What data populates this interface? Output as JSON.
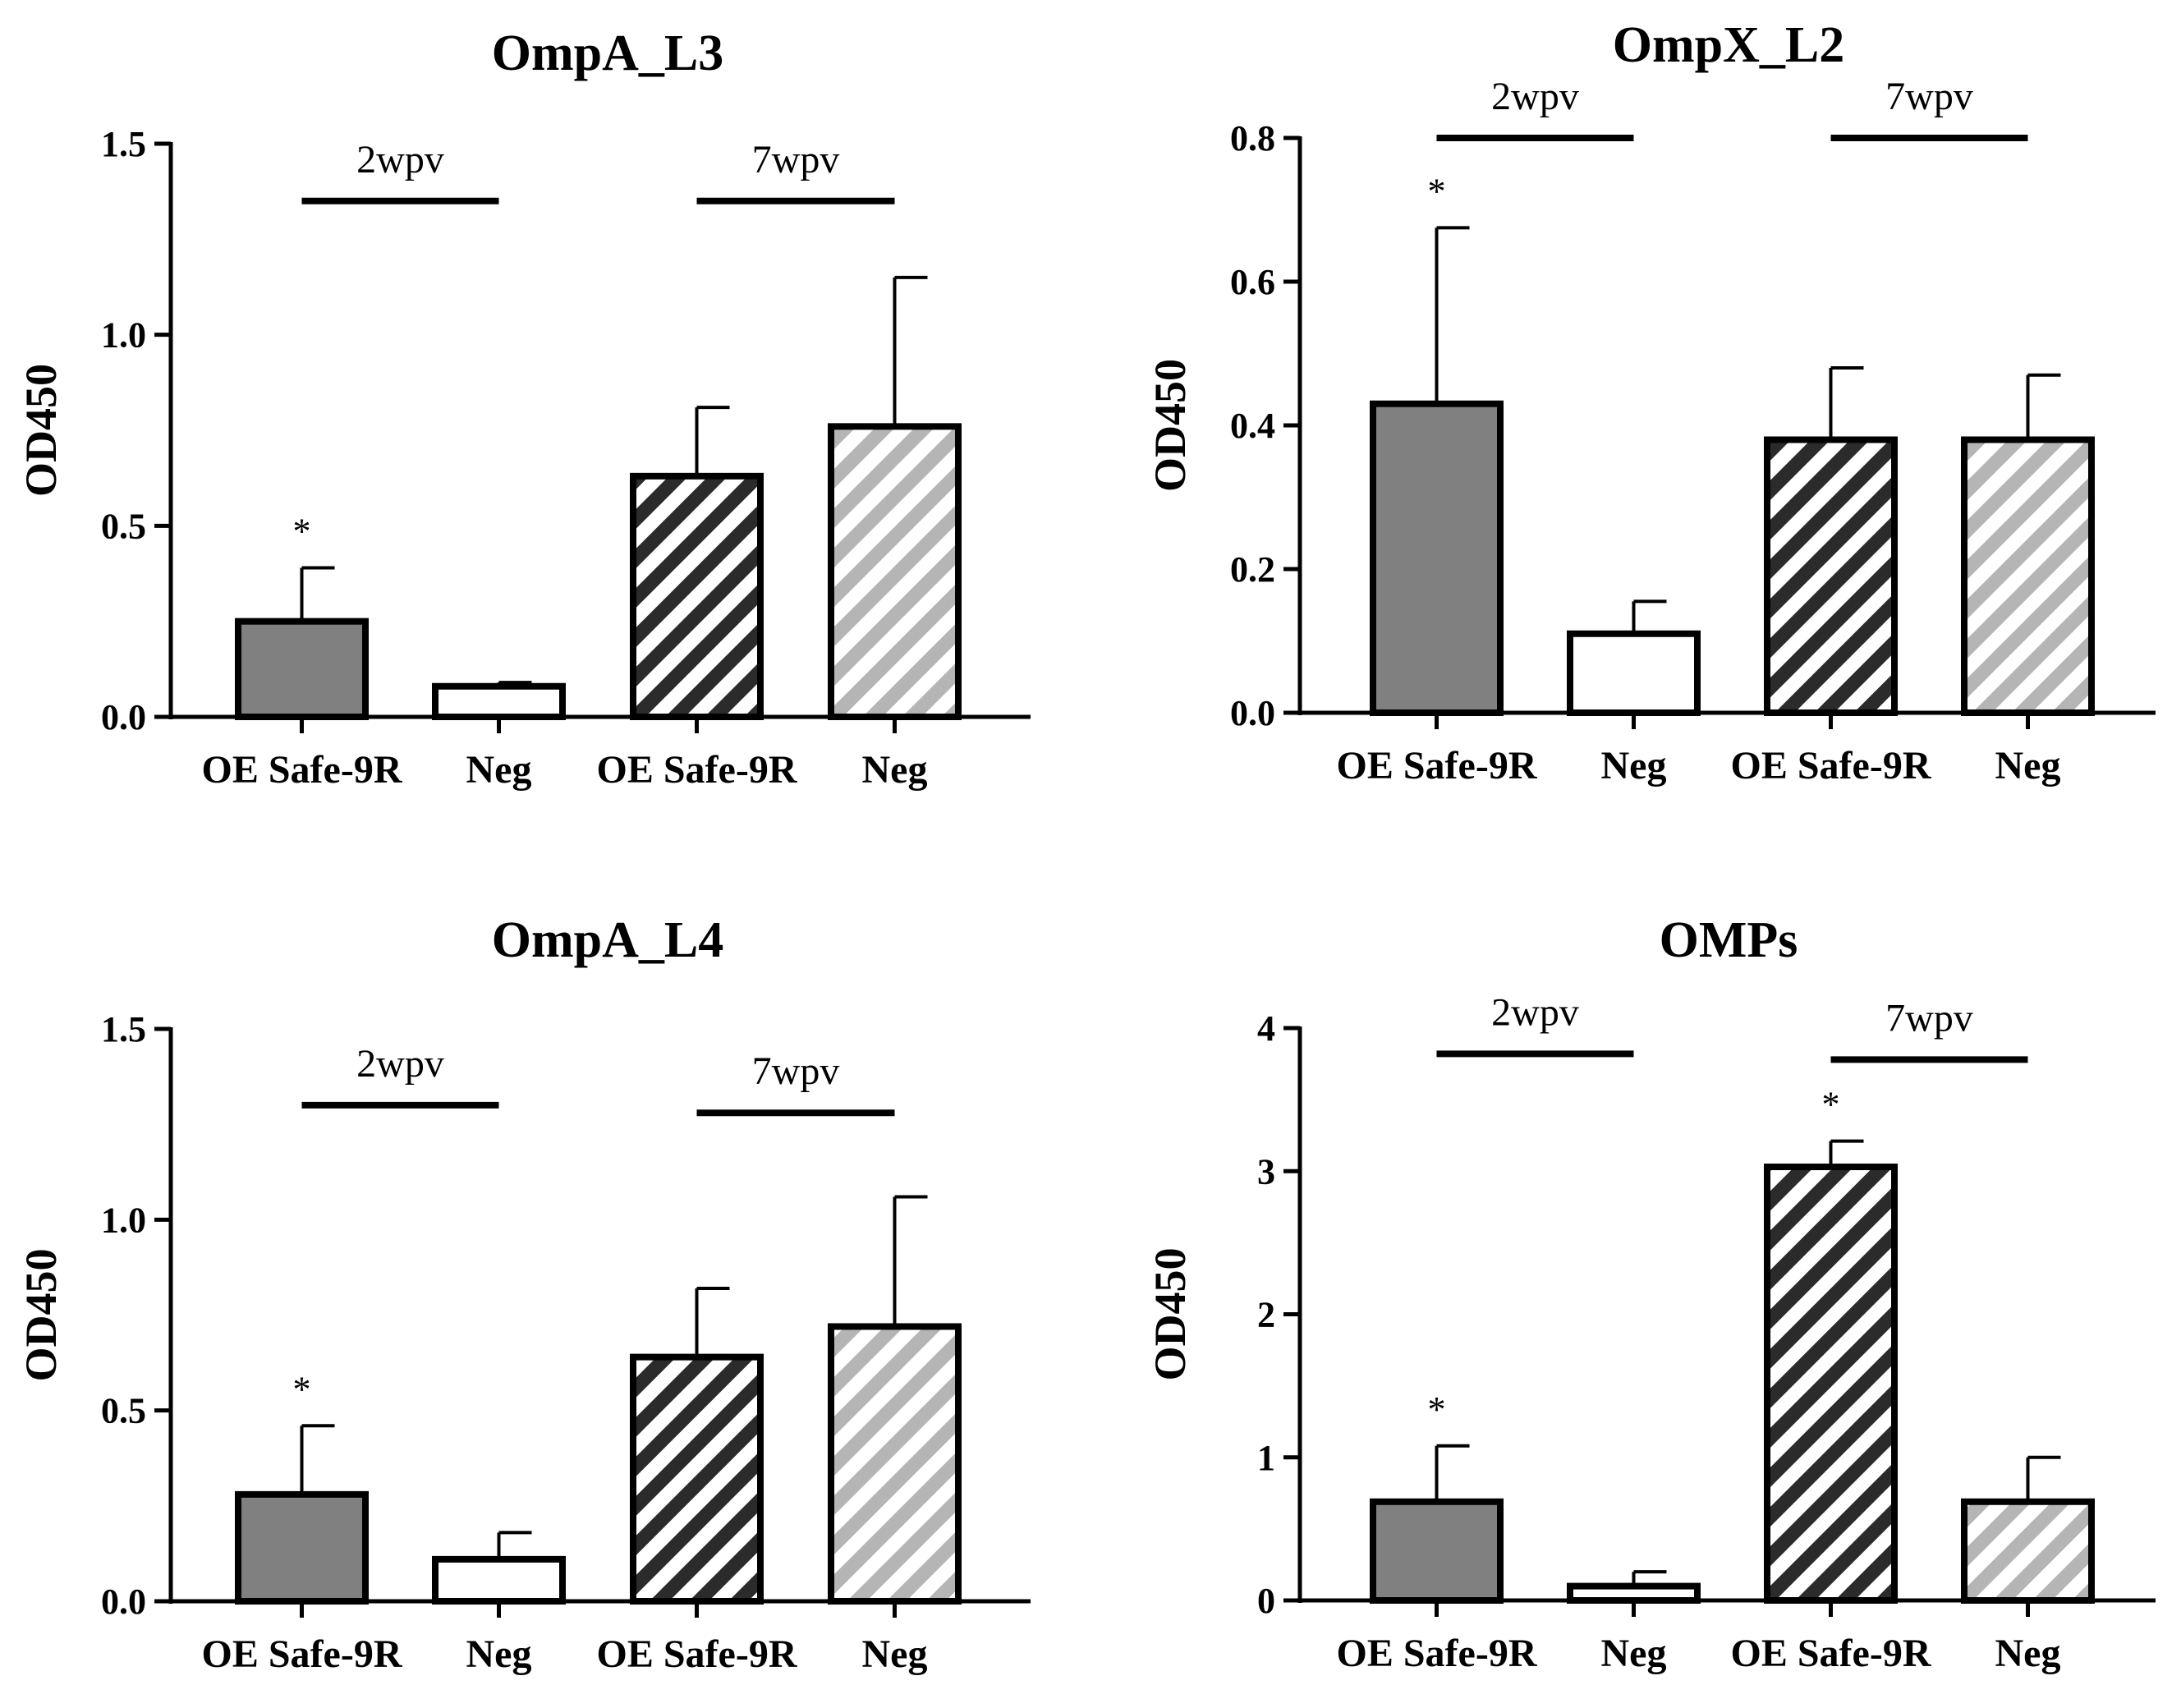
{
  "chart_data": [
    {
      "type": "bar",
      "title": "OmpA_L3",
      "ylabel": "OD450",
      "xlabel": "",
      "ylim": [
        0,
        1.5
      ],
      "yticks": [
        "0.0",
        "0.5",
        "1.0",
        "1.5"
      ],
      "ytick_values": [
        0,
        0.5,
        1.0,
        1.5
      ],
      "categories": [
        "OE Safe-9R",
        "Neg",
        "OE Safe-9R",
        "Neg"
      ],
      "values": [
        0.25,
        0.08,
        0.63,
        0.76
      ],
      "errors": [
        0.14,
        0.01,
        0.18,
        0.39
      ],
      "fills": [
        "solid-gray",
        "white",
        "hatch-dark",
        "hatch-light"
      ],
      "significance": [
        "*",
        "",
        "",
        ""
      ],
      "groups": [
        {
          "label": "2wpv",
          "bars": [
            0,
            1
          ],
          "level": 1.35
        },
        {
          "label": "7wpv",
          "bars": [
            2,
            3
          ],
          "level": 1.35
        }
      ]
    },
    {
      "type": "bar",
      "title": "OmpX_L2",
      "ylabel": "OD450",
      "xlabel": "",
      "ylim": [
        0,
        0.8
      ],
      "yticks": [
        "0.0",
        "0.2",
        "0.4",
        "0.6",
        "0.8"
      ],
      "ytick_values": [
        0,
        0.2,
        0.4,
        0.6,
        0.8
      ],
      "categories": [
        "OE Safe-9R",
        "Neg",
        "OE Safe-9R",
        "Neg"
      ],
      "values": [
        0.43,
        0.11,
        0.38,
        0.38
      ],
      "errors": [
        0.245,
        0.045,
        0.1,
        0.09
      ],
      "fills": [
        "solid-gray",
        "white",
        "hatch-dark",
        "hatch-light"
      ],
      "significance": [
        "*",
        "",
        "",
        ""
      ],
      "groups": [
        {
          "label": "2wpv",
          "bars": [
            0,
            1
          ],
          "level": 0.8
        },
        {
          "label": "7wpv",
          "bars": [
            2,
            3
          ],
          "level": 0.8
        }
      ]
    },
    {
      "type": "bar",
      "title": "OmpA_L4",
      "ylabel": "OD450",
      "xlabel": "",
      "ylim": [
        0,
        1.5
      ],
      "yticks": [
        "0.0",
        "0.5",
        "1.0",
        "1.5"
      ],
      "ytick_values": [
        0,
        0.5,
        1.0,
        1.5
      ],
      "categories": [
        "OE Safe-9R",
        "Neg",
        "OE Safe-9R",
        "Neg"
      ],
      "values": [
        0.28,
        0.11,
        0.64,
        0.72
      ],
      "errors": [
        0.18,
        0.07,
        0.18,
        0.34
      ],
      "fills": [
        "solid-gray",
        "white",
        "hatch-dark",
        "hatch-light"
      ],
      "significance": [
        "*",
        "",
        "",
        ""
      ],
      "groups": [
        {
          "label": "2wpv",
          "bars": [
            0,
            1
          ],
          "level": 1.3
        },
        {
          "label": "7wpv",
          "bars": [
            2,
            3
          ],
          "level": 1.28
        }
      ]
    },
    {
      "type": "bar",
      "title": "OMPs",
      "ylabel": "OD450",
      "xlabel": "",
      "ylim": [
        0,
        4
      ],
      "yticks": [
        "0",
        "1",
        "2",
        "3",
        "4"
      ],
      "ytick_values": [
        0,
        1,
        2,
        3,
        4
      ],
      "categories": [
        "OE Safe-9R",
        "Neg",
        "OE Safe-9R",
        "Neg"
      ],
      "values": [
        0.69,
        0.1,
        3.03,
        0.69
      ],
      "errors": [
        0.39,
        0.1,
        0.18,
        0.31
      ],
      "fills": [
        "solid-gray",
        "white",
        "hatch-dark",
        "hatch-light"
      ],
      "significance": [
        "*",
        "",
        "*",
        ""
      ],
      "groups": [
        {
          "label": "2wpv",
          "bars": [
            0,
            1
          ],
          "level": 3.82
        },
        {
          "label": "7wpv",
          "bars": [
            2,
            3
          ],
          "level": 3.78
        }
      ]
    }
  ]
}
